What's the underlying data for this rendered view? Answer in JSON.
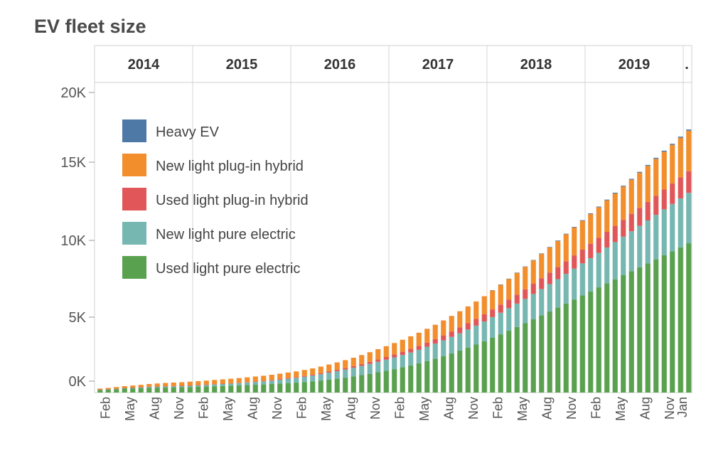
{
  "chart_data": {
    "type": "bar",
    "stacked": true,
    "title": "EV fleet size",
    "years": [
      "2014",
      "2015",
      "2016",
      "2017",
      "2018",
      "2019",
      "."
    ],
    "months": [
      "Feb",
      "May",
      "Aug",
      "Nov",
      "Feb",
      "May",
      "Aug",
      "Nov",
      "Feb",
      "May",
      "Aug",
      "Nov",
      "Feb",
      "May",
      "Aug",
      "Nov",
      "Feb",
      "May",
      "Aug",
      "Nov",
      "Feb",
      "May",
      "Aug",
      "Nov",
      "Jan"
    ],
    "y_ticks": [
      "0K",
      "5K",
      "10K",
      "15K",
      "20K"
    ],
    "ylim": [
      0,
      20000
    ],
    "legend_position": "top-left",
    "gridlines": {
      "vertical_year_separators": true,
      "horizontal": false
    },
    "categories": [
      "Jan 2014",
      "Feb 2014",
      "Mar 2014",
      "Apr 2014",
      "May 2014",
      "Jun 2014",
      "Jul 2014",
      "Aug 2014",
      "Sep 2014",
      "Oct 2014",
      "Nov 2014",
      "Dec 2014",
      "Jan 2015",
      "Feb 2015",
      "Mar 2015",
      "Apr 2015",
      "May 2015",
      "Jun 2015",
      "Jul 2015",
      "Aug 2015",
      "Sep 2015",
      "Oct 2015",
      "Nov 2015",
      "Dec 2015",
      "Jan 2016",
      "Feb 2016",
      "Mar 2016",
      "Apr 2016",
      "May 2016",
      "Jun 2016",
      "Jul 2016",
      "Aug 2016",
      "Sep 2016",
      "Oct 2016",
      "Nov 2016",
      "Dec 2016",
      "Jan 2017",
      "Feb 2017",
      "Mar 2017",
      "Apr 2017",
      "May 2017",
      "Jun 2017",
      "Jul 2017",
      "Aug 2017",
      "Sep 2017",
      "Oct 2017",
      "Nov 2017",
      "Dec 2017",
      "Jan 2018",
      "Feb 2018",
      "Mar 2018",
      "Apr 2018",
      "May 2018",
      "Jun 2018",
      "Jul 2018",
      "Aug 2018",
      "Sep 2018",
      "Oct 2018",
      "Nov 2018",
      "Dec 2018",
      "Jan 2019",
      "Feb 2019",
      "Mar 2019",
      "Apr 2019",
      "May 2019",
      "Jun 2019",
      "Jul 2019",
      "Aug 2019",
      "Sep 2019",
      "Oct 2019",
      "Nov 2019",
      "Dec 2019",
      "Jan 2020"
    ],
    "series": [
      {
        "name": "Used light pure electric",
        "color": "#59a14f",
        "values": [
          180,
          200,
          230,
          260,
          280,
          300,
          320,
          330,
          340,
          350,
          360,
          370,
          380,
          400,
          420,
          440,
          460,
          480,
          500,
          520,
          540,
          570,
          600,
          630,
          660,
          700,
          750,
          800,
          860,
          920,
          990,
          1070,
          1160,
          1250,
          1350,
          1450,
          1560,
          1680,
          1810,
          1950,
          2100,
          2260,
          2430,
          2610,
          2800,
          3000,
          3200,
          3420,
          3650,
          3880,
          4120,
          4370,
          4620,
          4880,
          5140,
          5400,
          5660,
          5930,
          6200,
          6470,
          6740,
          7010,
          7280,
          7550,
          7820,
          8090,
          8350,
          8610,
          8880,
          9150,
          9410,
          9680,
          9950
        ]
      },
      {
        "name": "New light pure electric",
        "color": "#76b7b2",
        "values": [
          20,
          25,
          30,
          40,
          45,
          50,
          60,
          65,
          70,
          75,
          80,
          90,
          100,
          110,
          120,
          130,
          140,
          150,
          170,
          190,
          210,
          230,
          260,
          290,
          320,
          350,
          380,
          420,
          460,
          500,
          540,
          580,
          620,
          660,
          700,
          740,
          780,
          820,
          860,
          900,
          950,
          1000,
          1050,
          1100,
          1150,
          1200,
          1260,
          1320,
          1380,
          1440,
          1500,
          1560,
          1620,
          1690,
          1760,
          1830,
          1900,
          1980,
          2060,
          2140,
          2220,
          2300,
          2390,
          2480,
          2570,
          2660,
          2760,
          2860,
          2960,
          3060,
          3160,
          3260,
          3360
        ]
      },
      {
        "name": "Used light plug-in hybrid",
        "color": "#e15759",
        "values": [
          5,
          5,
          5,
          5,
          5,
          5,
          10,
          10,
          10,
          10,
          10,
          15,
          15,
          15,
          20,
          20,
          20,
          25,
          25,
          30,
          30,
          35,
          40,
          45,
          50,
          55,
          60,
          70,
          80,
          90,
          100,
          110,
          120,
          140,
          160,
          180,
          200,
          220,
          240,
          260,
          280,
          300,
          330,
          360,
          390,
          420,
          450,
          480,
          510,
          540,
          570,
          600,
          640,
          680,
          720,
          760,
          800,
          840,
          880,
          920,
          960,
          1000,
          1040,
          1080,
          1120,
          1160,
          1200,
          1240,
          1280,
          1320,
          1360,
          1400,
          1440
        ]
      },
      {
        "name": "New light plug-in hybrid",
        "color": "#f28e2b",
        "values": [
          60,
          80,
          100,
          120,
          140,
          160,
          180,
          200,
          220,
          230,
          240,
          250,
          260,
          270,
          280,
          290,
          300,
          310,
          320,
          330,
          340,
          350,
          360,
          370,
          380,
          400,
          420,
          440,
          470,
          500,
          530,
          560,
          600,
          640,
          680,
          720,
          760,
          800,
          840,
          880,
          920,
          960,
          1000,
          1040,
          1080,
          1120,
          1160,
          1200,
          1260,
          1320,
          1380,
          1440,
          1500,
          1560,
          1620,
          1680,
          1740,
          1800,
          1860,
          1920,
          1980,
          2040,
          2100,
          2160,
          2220,
          2280,
          2340,
          2400,
          2460,
          2520,
          2580,
          2640,
          2700
        ]
      },
      {
        "name": "Heavy EV",
        "color": "#4e79a7",
        "values": [
          0,
          0,
          0,
          0,
          0,
          0,
          0,
          0,
          0,
          0,
          0,
          0,
          0,
          0,
          0,
          0,
          0,
          0,
          0,
          0,
          0,
          0,
          0,
          0,
          0,
          0,
          0,
          0,
          0,
          0,
          0,
          0,
          0,
          0,
          0,
          0,
          0,
          0,
          0,
          0,
          0,
          0,
          0,
          0,
          0,
          0,
          0,
          0,
          20,
          20,
          20,
          25,
          25,
          25,
          30,
          30,
          35,
          35,
          40,
          40,
          45,
          45,
          50,
          50,
          55,
          55,
          60,
          60,
          65,
          70,
          70,
          75,
          80
        ]
      }
    ],
    "legend_order": [
      "Heavy EV",
      "New light plug-in hybrid",
      "Used light plug-in hybrid",
      "New light pure electric",
      "Used light pure electric"
    ]
  }
}
